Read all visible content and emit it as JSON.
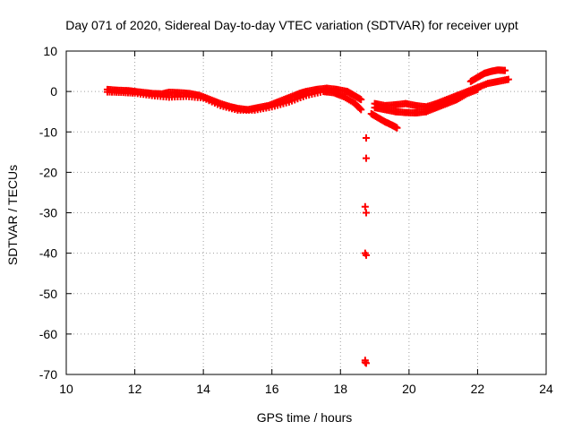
{
  "chart_data": {
    "type": "scatter",
    "title": "Day 071 of 2020, Sidereal Day-to-day VTEC variation (SDTVAR) for receiver uypt",
    "xlabel": "GPS time / hours",
    "ylabel": "SDTVAR / TECUs",
    "xlim": [
      10,
      24
    ],
    "ylim": [
      -70,
      10
    ],
    "xticks": [
      10,
      12,
      14,
      16,
      18,
      20,
      22,
      24
    ],
    "yticks": [
      10,
      0,
      -10,
      -20,
      -30,
      -40,
      -50,
      -60,
      -70
    ],
    "grid": true,
    "marker": "plus",
    "series": [
      {
        "name": "main trace",
        "color": "#ff0000",
        "x": [
          11.2,
          11.5,
          11.8,
          12.0,
          12.3,
          12.5,
          12.8,
          13.0,
          13.3,
          13.6,
          13.9,
          14.2,
          14.5,
          14.8,
          15.0,
          15.3,
          15.6,
          15.9,
          16.2,
          16.5,
          16.8,
          17.0,
          17.3,
          17.6,
          17.9,
          18.2,
          18.4,
          18.6
        ],
        "y": [
          0.5,
          0.3,
          0.2,
          0.0,
          -0.3,
          -0.5,
          -0.6,
          -0.2,
          -0.3,
          -0.5,
          -1.0,
          -2.0,
          -3.0,
          -3.8,
          -4.2,
          -4.5,
          -4.0,
          -3.5,
          -2.5,
          -1.5,
          -0.5,
          0.0,
          0.5,
          0.8,
          0.5,
          0.0,
          -1.0,
          -2.0
        ]
      },
      {
        "name": "second trace",
        "color": "#ff0000",
        "x": [
          11.2,
          11.6,
          12.0,
          12.5,
          13.0,
          13.5,
          14.0,
          14.5,
          15.0,
          15.5,
          16.0,
          16.5,
          17.0,
          17.5,
          17.8,
          18.1,
          18.4,
          18.6
        ],
        "y": [
          -0.1,
          -0.2,
          -0.4,
          -1.0,
          -1.4,
          -1.2,
          -1.6,
          -3.5,
          -4.6,
          -4.6,
          -3.8,
          -2.6,
          -1.0,
          0.0,
          -0.3,
          -1.3,
          -2.8,
          -4.5
        ]
      },
      {
        "name": "after gap",
        "color": "#ff0000",
        "x": [
          19.0,
          19.3,
          19.6,
          19.9,
          20.2,
          20.5,
          20.8,
          21.1,
          21.4,
          21.7,
          22.0,
          22.3,
          22.6,
          22.9
        ],
        "y": [
          -3.0,
          -3.5,
          -3.3,
          -3.0,
          -3.5,
          -3.8,
          -3.0,
          -2.0,
          -1.0,
          0.0,
          1.0,
          2.0,
          2.5,
          3.0
        ]
      },
      {
        "name": "after gap lower",
        "color": "#ff0000",
        "x": [
          19.0,
          19.3,
          19.6,
          19.9,
          20.2,
          20.5,
          20.8,
          21.1,
          21.4,
          21.7,
          22.0
        ],
        "y": [
          -4.0,
          -4.5,
          -5.0,
          -5.2,
          -5.3,
          -5.0,
          -4.0,
          -3.0,
          -2.0,
          -0.5,
          0.5
        ]
      },
      {
        "name": "upper branch",
        "color": "#ff0000",
        "x": [
          21.8,
          22.0,
          22.2,
          22.4,
          22.6,
          22.8
        ],
        "y": [
          2.5,
          3.5,
          4.5,
          5.0,
          5.3,
          5.2
        ]
      },
      {
        "name": "descending segment",
        "color": "#ff0000",
        "x": [
          18.9,
          19.1,
          19.3,
          19.5,
          19.65
        ],
        "y": [
          -5.5,
          -6.5,
          -7.5,
          -8.3,
          -9.0
        ]
      },
      {
        "name": "outliers",
        "color": "#ff0000",
        "x": [
          18.75,
          18.75,
          18.72,
          18.75,
          18.72,
          18.75,
          18.72,
          18.75,
          18.72
        ],
        "y": [
          -11.5,
          -16.5,
          -28.5,
          -30.0,
          -40.0,
          -40.5,
          -66.5,
          -67.2,
          -67.0
        ]
      }
    ]
  }
}
